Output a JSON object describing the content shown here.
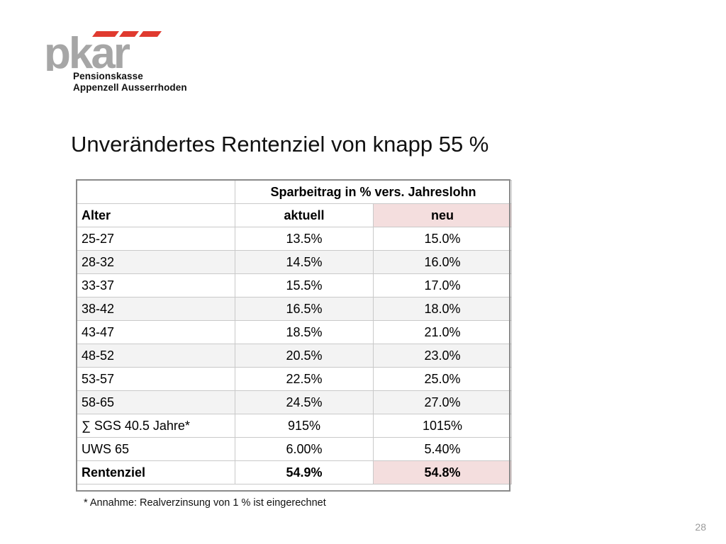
{
  "logo": {
    "wordmark": "pkar",
    "line1": "Pensionskasse",
    "line2": "Appenzell Ausserrhoden",
    "colors": {
      "gray": "#a6a6a6",
      "red": "#e03a2f"
    }
  },
  "title": "Unverändertes Rentenziel von knapp 55 %",
  "table": {
    "header_group": "Sparbeitrag in % vers. Jahreslohn",
    "col_alter": "Alter",
    "col_aktuell": "aktuell",
    "col_neu": "neu",
    "rows": [
      {
        "alter": "25-27",
        "aktuell": "13.5%",
        "neu": "15.0%"
      },
      {
        "alter": "28-32",
        "aktuell": "14.5%",
        "neu": "16.0%"
      },
      {
        "alter": "33-37",
        "aktuell": "15.5%",
        "neu": "17.0%"
      },
      {
        "alter": "38-42",
        "aktuell": "16.5%",
        "neu": "18.0%"
      },
      {
        "alter": "43-47",
        "aktuell": "18.5%",
        "neu": "21.0%"
      },
      {
        "alter": "48-52",
        "aktuell": "20.5%",
        "neu": "23.0%"
      },
      {
        "alter": "53-57",
        "aktuell": "22.5%",
        "neu": "25.0%"
      },
      {
        "alter": "58-65",
        "aktuell": "24.5%",
        "neu": "27.0%"
      }
    ],
    "sum_row": {
      "label": "∑ SGS 40.5 Jahre*",
      "aktuell": "915%",
      "neu": "1015%"
    },
    "uws_row": {
      "label": "UWS 65",
      "aktuell": "6.00%",
      "neu": "5.40%"
    },
    "ziel_row": {
      "label": "Rentenziel",
      "aktuell": "54.9%",
      "neu": "54.8%"
    },
    "highlight_color": "#f4dede"
  },
  "footnote": "* Annahme: Realverzinsung von 1 % ist eingerechnet",
  "page_number": "28"
}
